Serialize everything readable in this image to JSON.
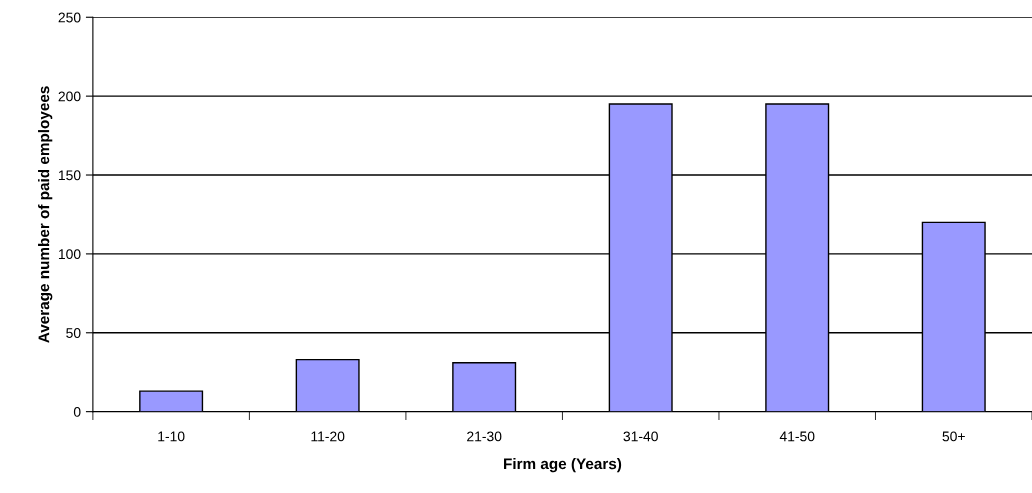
{
  "chart_data": {
    "type": "bar",
    "xlabel": "Firm age (Years)",
    "ylabel": "Average number of paid employees",
    "categories": [
      "1-10",
      "11-20",
      "21-30",
      "31-40",
      "41-50",
      "50+"
    ],
    "values": [
      13,
      33,
      31,
      195,
      195,
      120
    ],
    "color": "#9999ff",
    "ylim": [
      0,
      250
    ],
    "yticks": [
      0,
      50,
      100,
      150,
      200,
      250
    ],
    "grid": "y"
  }
}
